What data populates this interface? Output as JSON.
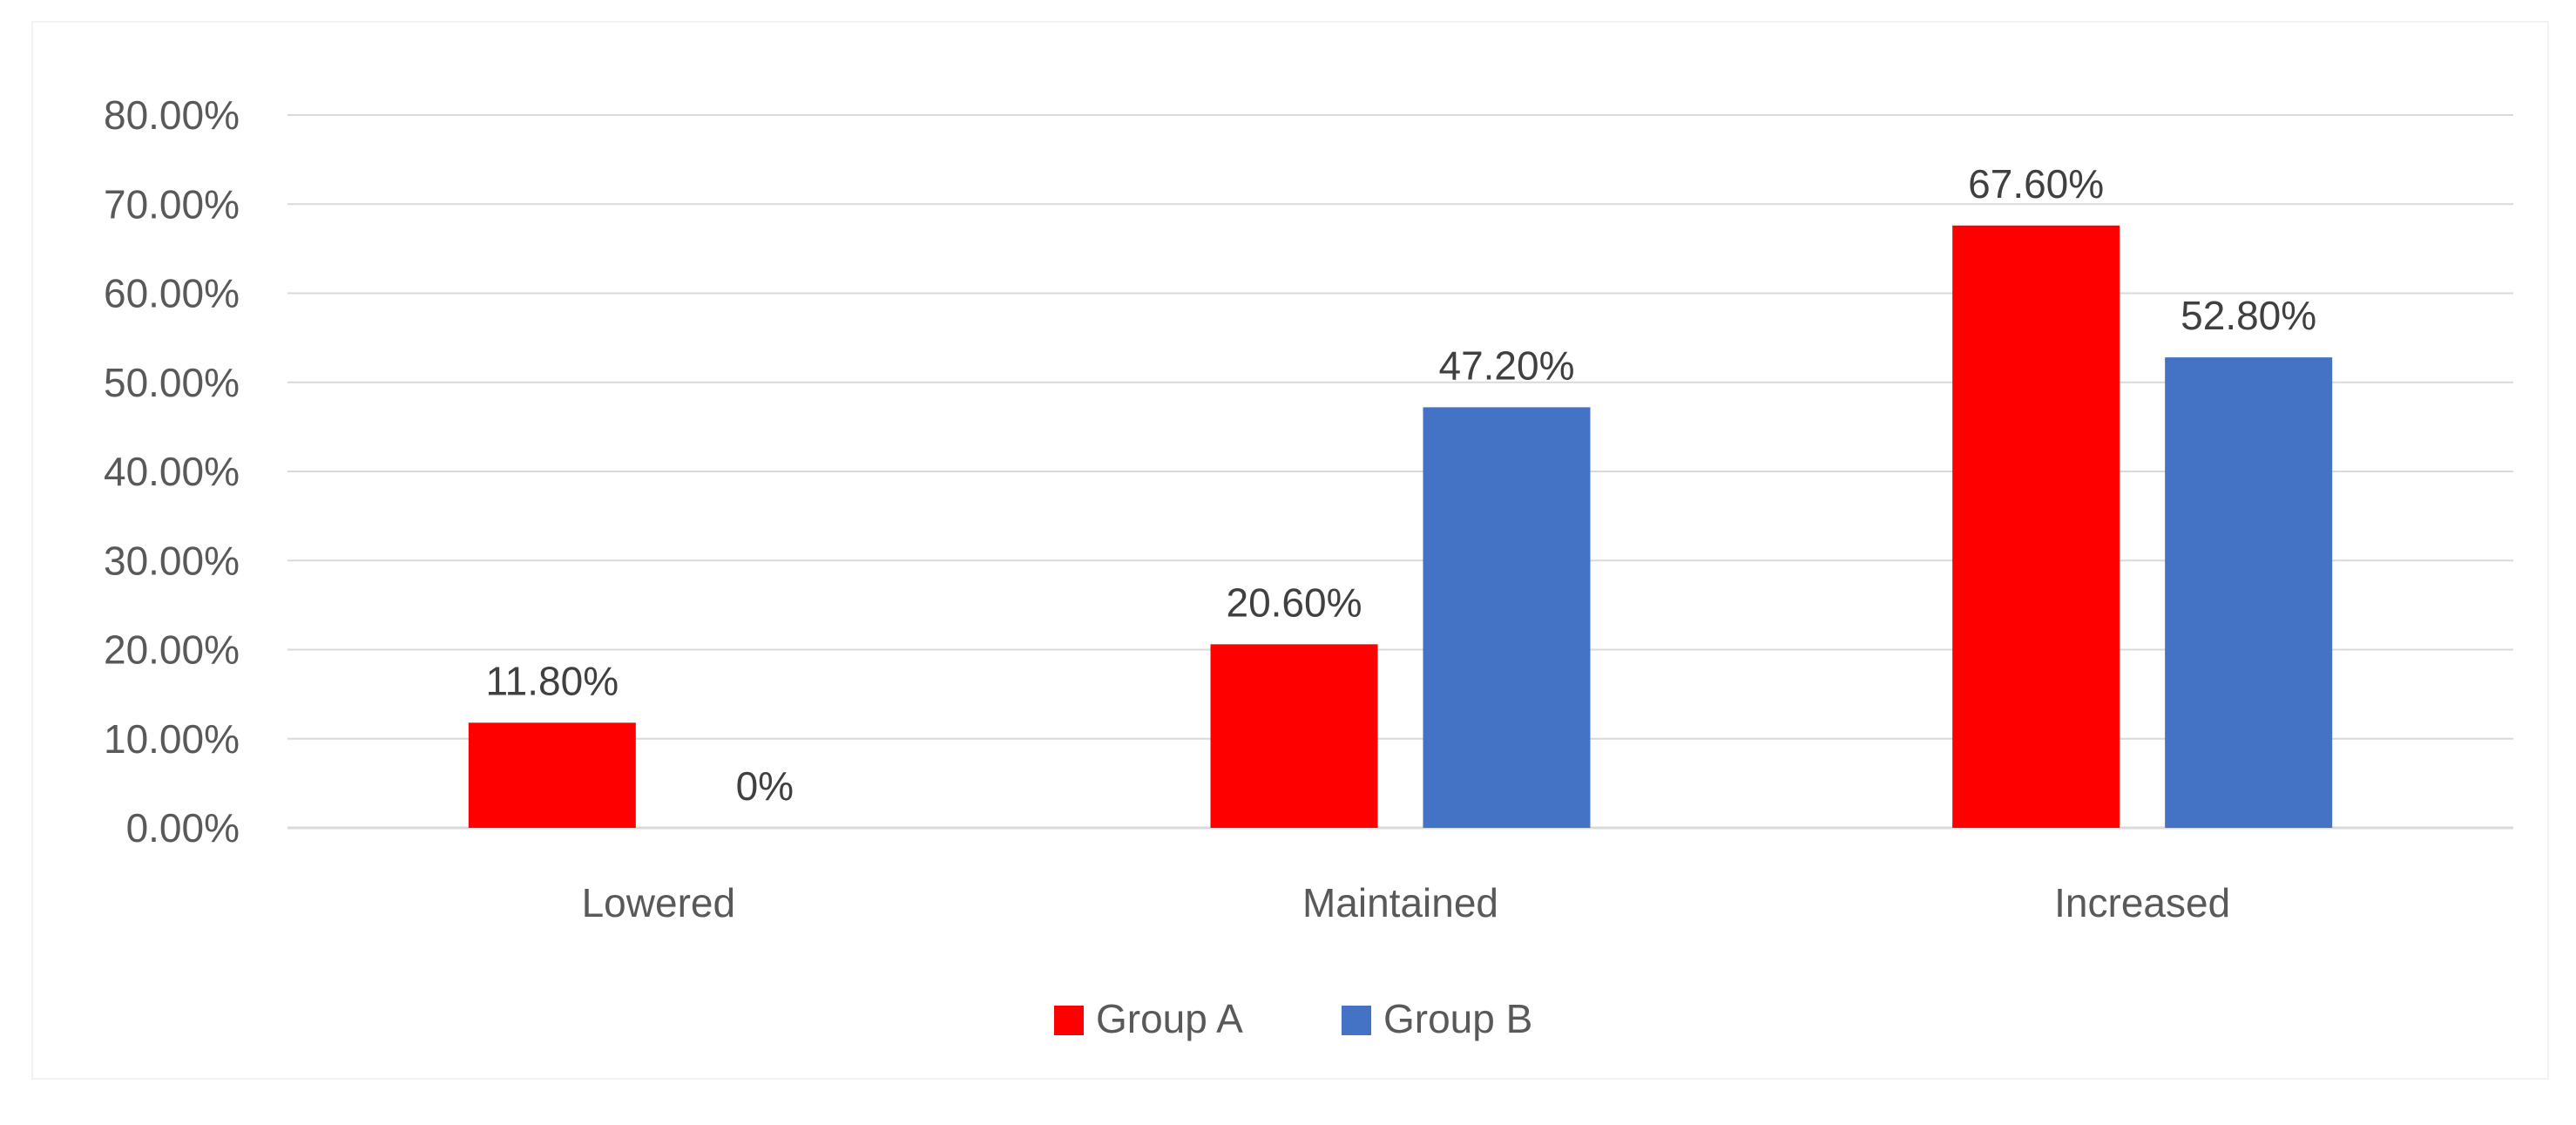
{
  "chart_data": {
    "type": "bar",
    "categories": [
      "Lowered",
      "Maintained",
      "Increased"
    ],
    "series": [
      {
        "name": "Group A",
        "values": [
          11.8,
          20.6,
          67.6
        ],
        "labels": [
          "11.80%",
          "20.60%",
          "67.60%"
        ],
        "color": "#ff0000"
      },
      {
        "name": "Group B",
        "values": [
          0,
          47.2,
          52.8
        ],
        "labels": [
          "0%",
          "47.20%",
          "52.80%"
        ],
        "color": "#4472c4"
      }
    ],
    "yticks": [
      "0.00%",
      "10.00%",
      "20.00%",
      "30.00%",
      "40.00%",
      "50.00%",
      "60.00%",
      "70.00%",
      "80.00%"
    ],
    "ylim": [
      0,
      80
    ],
    "title": "",
    "xlabel": "",
    "ylabel": "",
    "grid": true,
    "legend_position": "bottom",
    "gridline_color": "#d9d9d9"
  }
}
